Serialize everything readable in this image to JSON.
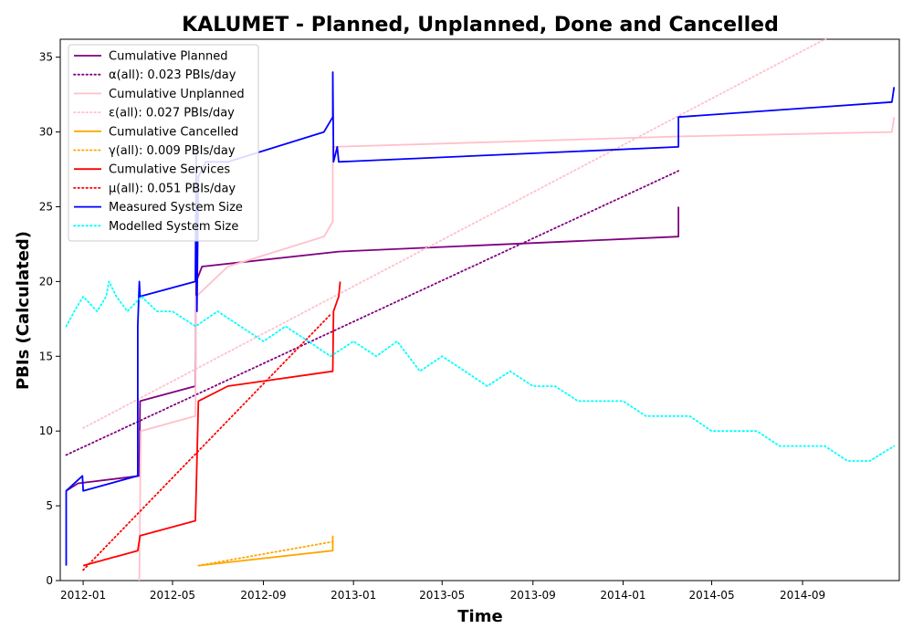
{
  "chart_data": {
    "type": "line",
    "title": "KALUMET - Planned, Unplanned, Done  and Cancelled",
    "xlabel": "Time",
    "ylabel": "PBIs (Calculated)",
    "xlim": [
      "2011-12-01",
      "2015-01-10"
    ],
    "ylim": [
      0,
      36.2
    ],
    "x_ticks": [
      "2012-01",
      "2012-05",
      "2012-09",
      "2013-01",
      "2013-05",
      "2013-09",
      "2014-01",
      "2014-05",
      "2014-09"
    ],
    "y_ticks": [
      0,
      5,
      10,
      15,
      20,
      25,
      30,
      35
    ],
    "legend_position": "top-left",
    "series": [
      {
        "name": "Cumulative Planned",
        "color": "#800080",
        "style": "solid",
        "points": [
          [
            "2011-12-09",
            6
          ],
          [
            "2011-12-25",
            6.5
          ],
          [
            "2012-03-17",
            7
          ],
          [
            "2012-03-18",
            12
          ],
          [
            "2012-06-01",
            13
          ],
          [
            "2012-06-02",
            20
          ],
          [
            "2012-06-10",
            21
          ],
          [
            "2012-12-12",
            22
          ],
          [
            "2014-03-17",
            23
          ],
          [
            "2014-03-17",
            25
          ]
        ]
      },
      {
        "name": "α(all): 0.023 PBIs/day",
        "color": "#800080",
        "style": "dotted",
        "points": [
          [
            "2011-12-09",
            8.4
          ],
          [
            "2014-03-17",
            27.4
          ]
        ]
      },
      {
        "name": "Cumulative Unplanned",
        "color": "#ffc0cb",
        "style": "solid",
        "points": [
          [
            "2012-03-17",
            0
          ],
          [
            "2012-03-19",
            10
          ],
          [
            "2012-06-01",
            11
          ],
          [
            "2012-06-02",
            19
          ],
          [
            "2012-07-15",
            21
          ],
          [
            "2012-11-22",
            23
          ],
          [
            "2012-12-04",
            24
          ],
          [
            "2012-12-04",
            29
          ],
          [
            "2014-03-17",
            29.7
          ],
          [
            "2014-12-31",
            30
          ],
          [
            "2015-01-03",
            31
          ]
        ]
      },
      {
        "name": "ε(all): 0.027 PBIs/day",
        "color": "#ffc0cb",
        "style": "dotted",
        "points": [
          [
            "2012-01-01",
            10.2
          ],
          [
            "2014-10-05",
            36.3
          ]
        ]
      },
      {
        "name": "Cumulative Cancelled",
        "color": "#ffa500",
        "style": "solid",
        "points": [
          [
            "2012-06-05",
            1
          ],
          [
            "2012-12-04",
            2
          ],
          [
            "2012-12-04",
            3
          ]
        ]
      },
      {
        "name": "γ(all): 0.009 PBIs/day",
        "color": "#ffa500",
        "style": "dotted",
        "points": [
          [
            "2012-06-05",
            1
          ],
          [
            "2012-12-04",
            2.6
          ]
        ]
      },
      {
        "name": "Cumulative Services",
        "color": "#ff0000",
        "style": "solid",
        "points": [
          [
            "2012-01-01",
            1
          ],
          [
            "2012-03-15",
            2
          ],
          [
            "2012-03-18",
            3
          ],
          [
            "2012-06-01",
            4
          ],
          [
            "2012-06-02",
            6
          ],
          [
            "2012-06-05",
            12
          ],
          [
            "2012-07-15",
            13
          ],
          [
            "2012-12-04",
            14
          ],
          [
            "2012-12-05",
            18
          ],
          [
            "2012-12-12",
            19
          ],
          [
            "2012-12-14",
            20
          ]
        ]
      },
      {
        "name": "μ(all): 0.051 PBIs/day",
        "color": "#ff0000",
        "style": "dotted",
        "points": [
          [
            "2012-01-01",
            0.7
          ],
          [
            "2012-12-01",
            17.8
          ]
        ]
      },
      {
        "name": "Measured System Size",
        "color": "#0000ff",
        "style": "solid",
        "points": [
          [
            "2011-12-09",
            1
          ],
          [
            "2011-12-09",
            6
          ],
          [
            "2011-12-31",
            7
          ],
          [
            "2012-01-01",
            6
          ],
          [
            "2012-03-15",
            7
          ],
          [
            "2012-03-15",
            17
          ],
          [
            "2012-03-17",
            20
          ],
          [
            "2012-03-18",
            19
          ],
          [
            "2012-06-01",
            20
          ],
          [
            "2012-06-02",
            29
          ],
          [
            "2012-06-03",
            18
          ],
          [
            "2012-06-05",
            27
          ],
          [
            "2012-06-15",
            28
          ],
          [
            "2012-07-15",
            28
          ],
          [
            "2012-11-22",
            30
          ],
          [
            "2012-12-04",
            31
          ],
          [
            "2012-12-04",
            34
          ],
          [
            "2012-12-05",
            28
          ],
          [
            "2012-12-10",
            29
          ],
          [
            "2012-12-12",
            28
          ],
          [
            "2014-03-17",
            29
          ],
          [
            "2014-03-17",
            31
          ],
          [
            "2014-12-31",
            32
          ],
          [
            "2015-01-03",
            33
          ]
        ]
      },
      {
        "name": "Modelled System Size",
        "color": "#00ffff",
        "style": "dotted",
        "points": [
          [
            "2011-12-09",
            17
          ],
          [
            "2011-12-20",
            18
          ],
          [
            "2012-01-01",
            19
          ],
          [
            "2012-01-20",
            18
          ],
          [
            "2012-02-01",
            19
          ],
          [
            "2012-02-05",
            20
          ],
          [
            "2012-02-15",
            19
          ],
          [
            "2012-03-01",
            18
          ],
          [
            "2012-03-20",
            19
          ],
          [
            "2012-04-10",
            18
          ],
          [
            "2012-05-01",
            18
          ],
          [
            "2012-06-01",
            17
          ],
          [
            "2012-07-01",
            18
          ],
          [
            "2012-08-01",
            17
          ],
          [
            "2012-09-01",
            16
          ],
          [
            "2012-10-01",
            17
          ],
          [
            "2012-11-01",
            16
          ],
          [
            "2012-12-01",
            15
          ],
          [
            "2013-01-01",
            16
          ],
          [
            "2013-02-01",
            15
          ],
          [
            "2013-03-01",
            16
          ],
          [
            "2013-04-01",
            14
          ],
          [
            "2013-05-01",
            15
          ],
          [
            "2013-06-01",
            14
          ],
          [
            "2013-07-01",
            13
          ],
          [
            "2013-08-01",
            14
          ],
          [
            "2013-09-01",
            13
          ],
          [
            "2013-10-01",
            13
          ],
          [
            "2013-11-01",
            12
          ],
          [
            "2013-12-01",
            12
          ],
          [
            "2014-01-01",
            12
          ],
          [
            "2014-02-01",
            11
          ],
          [
            "2014-03-01",
            11
          ],
          [
            "2014-04-01",
            11
          ],
          [
            "2014-05-01",
            10
          ],
          [
            "2014-06-01",
            10
          ],
          [
            "2014-07-01",
            10
          ],
          [
            "2014-08-01",
            9
          ],
          [
            "2014-09-01",
            9
          ],
          [
            "2014-10-01",
            9
          ],
          [
            "2014-11-01",
            8
          ],
          [
            "2014-12-01",
            8
          ],
          [
            "2015-01-03",
            9
          ]
        ]
      }
    ]
  }
}
